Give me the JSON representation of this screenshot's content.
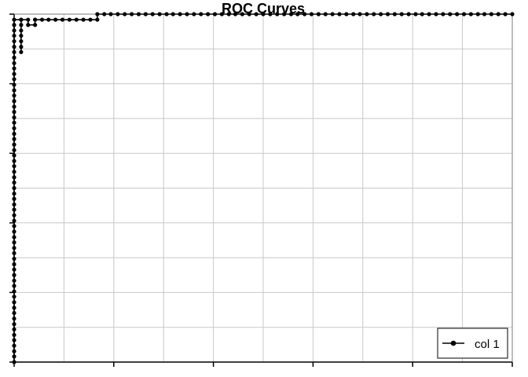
{
  "chart_data": {
    "type": "line",
    "title": "ROC Curves",
    "xlabel": "",
    "ylabel": "",
    "xlim": [
      0,
      1
    ],
    "ylim": [
      0,
      1
    ],
    "grid": true,
    "x_gridlines": [
      0.1,
      0.2,
      0.3,
      0.4,
      0.5,
      0.6,
      0.7,
      0.8,
      0.9
    ],
    "y_gridlines": [
      0.1,
      0.2,
      0.3,
      0.4,
      0.5,
      0.6,
      0.7,
      0.8,
      0.9
    ],
    "x_ticks": [
      0,
      0.2,
      0.4,
      0.6,
      0.8,
      1.0
    ],
    "y_ticks": [
      0,
      0.2,
      0.4,
      0.6,
      0.8,
      1.0
    ],
    "legend_position": "bottom-right",
    "series": [
      {
        "name": "col 1",
        "color": "#000000",
        "marker": "circle",
        "x": [
          0,
          0,
          0,
          0,
          0,
          0,
          0,
          0,
          0,
          0,
          0,
          0,
          0,
          0,
          0,
          0,
          0,
          0,
          0,
          0,
          0,
          0,
          0,
          0,
          0,
          0,
          0,
          0,
          0,
          0,
          0,
          0,
          0,
          0,
          0,
          0,
          0,
          0,
          0,
          0,
          0,
          0,
          0,
          0,
          0,
          0,
          0,
          0,
          0,
          0,
          0,
          0,
          0,
          0,
          0,
          0,
          0,
          0,
          0,
          0,
          0,
          0,
          0,
          0,
          0.014,
          0.014,
          0.014,
          0.014,
          0.014,
          0.014,
          0.014,
          0.014,
          0.028,
          0.028,
          0.042,
          0.042,
          0.042,
          0.056,
          0.069,
          0.083,
          0.097,
          0.111,
          0.125,
          0.139,
          0.153,
          0.167,
          0.167,
          0.181,
          0.194,
          0.208,
          0.222,
          0.236,
          0.25,
          0.264,
          0.278,
          0.292,
          0.306,
          0.319,
          0.333,
          0.347,
          0.361,
          0.375,
          0.389,
          0.403,
          0.417,
          0.431,
          0.444,
          0.458,
          0.472,
          0.486,
          0.5,
          0.514,
          0.528,
          0.542,
          0.556,
          0.569,
          0.583,
          0.597,
          0.611,
          0.625,
          0.639,
          0.653,
          0.667,
          0.681,
          0.694,
          0.708,
          0.722,
          0.736,
          0.75,
          0.764,
          0.778,
          0.792,
          0.806,
          0.819,
          0.833,
          0.847,
          0.861,
          0.875,
          0.889,
          0.903,
          0.917,
          0.931,
          0.944,
          0.958,
          0.972,
          0.986,
          1.0
        ],
        "y": [
          0,
          0.016,
          0.031,
          0.047,
          0.063,
          0.078,
          0.094,
          0.109,
          0.125,
          0.141,
          0.156,
          0.172,
          0.188,
          0.203,
          0.219,
          0.234,
          0.25,
          0.266,
          0.281,
          0.297,
          0.313,
          0.328,
          0.344,
          0.359,
          0.375,
          0.391,
          0.406,
          0.422,
          0.438,
          0.453,
          0.469,
          0.484,
          0.5,
          0.516,
          0.531,
          0.547,
          0.563,
          0.578,
          0.594,
          0.609,
          0.625,
          0.641,
          0.656,
          0.672,
          0.688,
          0.703,
          0.719,
          0.734,
          0.75,
          0.766,
          0.781,
          0.797,
          0.813,
          0.828,
          0.844,
          0.859,
          0.875,
          0.891,
          0.906,
          0.922,
          0.938,
          0.953,
          0.969,
          0.984,
          0.984,
          0.891,
          0.906,
          0.922,
          0.938,
          0.953,
          0.969,
          0.984,
          0.984,
          0.969,
          0.969,
          0.984,
          0.984,
          0.984,
          0.984,
          0.984,
          0.984,
          0.984,
          0.984,
          0.984,
          0.984,
          0.984,
          1.0,
          1.0,
          1.0,
          1.0,
          1.0,
          1.0,
          1.0,
          1.0,
          1.0,
          1.0,
          1.0,
          1.0,
          1.0,
          1.0,
          1.0,
          1.0,
          1.0,
          1.0,
          1.0,
          1.0,
          1.0,
          1.0,
          1.0,
          1.0,
          1.0,
          1.0,
          1.0,
          1.0,
          1.0,
          1.0,
          1.0,
          1.0,
          1.0,
          1.0,
          1.0,
          1.0,
          1.0,
          1.0,
          1.0,
          1.0,
          1.0,
          1.0,
          1.0,
          1.0,
          1.0,
          1.0,
          1.0,
          1.0,
          1.0,
          1.0,
          1.0,
          1.0,
          1.0,
          1.0,
          1.0,
          1.0,
          1.0,
          1.0,
          1.0,
          1.0,
          1.0
        ]
      }
    ]
  }
}
